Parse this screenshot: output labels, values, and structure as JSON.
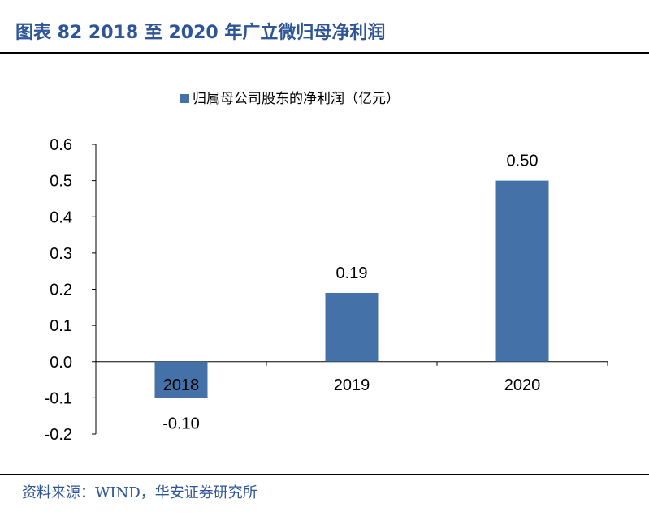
{
  "figure_title": "图表 82 2018 至 2020 年广立微归母净利润",
  "source_note": "资料来源：WIND，华安证券研究所",
  "colors": {
    "title": "#2E5597",
    "bar": "#4472A8",
    "axis": "#000000"
  },
  "chart_data": {
    "type": "bar",
    "categories": [
      "2018",
      "2019",
      "2020"
    ],
    "series": [
      {
        "name": "归属母公司股东的净利润（亿元）",
        "values": [
          -0.1,
          0.19,
          0.5
        ]
      }
    ],
    "data_labels": [
      "-0.10",
      "0.19",
      "0.50"
    ],
    "y_ticks": [
      "0.6",
      "0.5",
      "0.4",
      "0.3",
      "0.2",
      "0.1",
      "0.0",
      "-0.1",
      "-0.2"
    ],
    "ylim": [
      -0.2,
      0.6
    ],
    "grid": false,
    "legend_position": "top-center"
  }
}
